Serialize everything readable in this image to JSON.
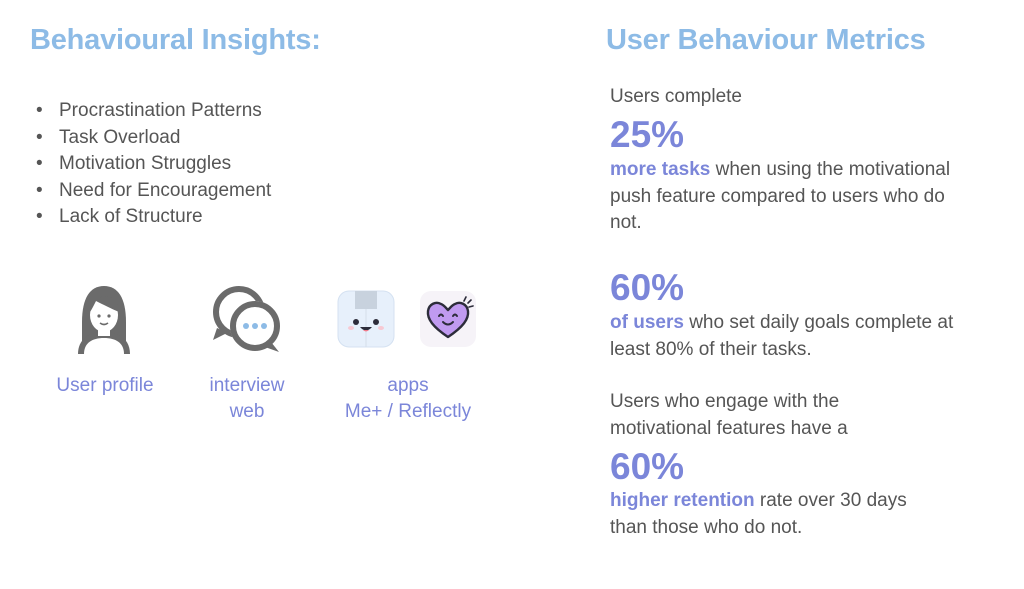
{
  "left": {
    "title": "Behavioural Insights:",
    "insights": [
      "Procrastination Patterns",
      "Task Overload",
      "Motivation Struggles",
      "Need for Encouragement",
      "Lack of Structure"
    ],
    "sources": [
      {
        "icon": "user-icon",
        "label": "User profile"
      },
      {
        "icon": "chat-bubbles-icon",
        "label_lines": [
          "interview",
          "web"
        ]
      },
      {
        "icon": "app-icons",
        "label_lines": [
          "apps",
          "Me+ / Reflectly"
        ]
      }
    ]
  },
  "right": {
    "title": "User Behaviour Metrics",
    "metrics": [
      {
        "intro": "Users complete",
        "value": "25%",
        "highlight": "more tasks",
        "rest": " when using the motivational push feature compared to users who do not."
      },
      {
        "value": "60%",
        "highlight": "of users",
        "rest": " who set daily goals complete at least 80% of their tasks."
      },
      {
        "intro": "Users who engage with the motivational features have a",
        "value": "60%",
        "highlight": "higher retention",
        "rest": " rate over 30 days than those who do not."
      }
    ]
  },
  "colors": {
    "heading": "#8dbbe6",
    "accent": "#7b86d9",
    "body_text": "#555555",
    "icon_gray": "#6b6b6b"
  }
}
